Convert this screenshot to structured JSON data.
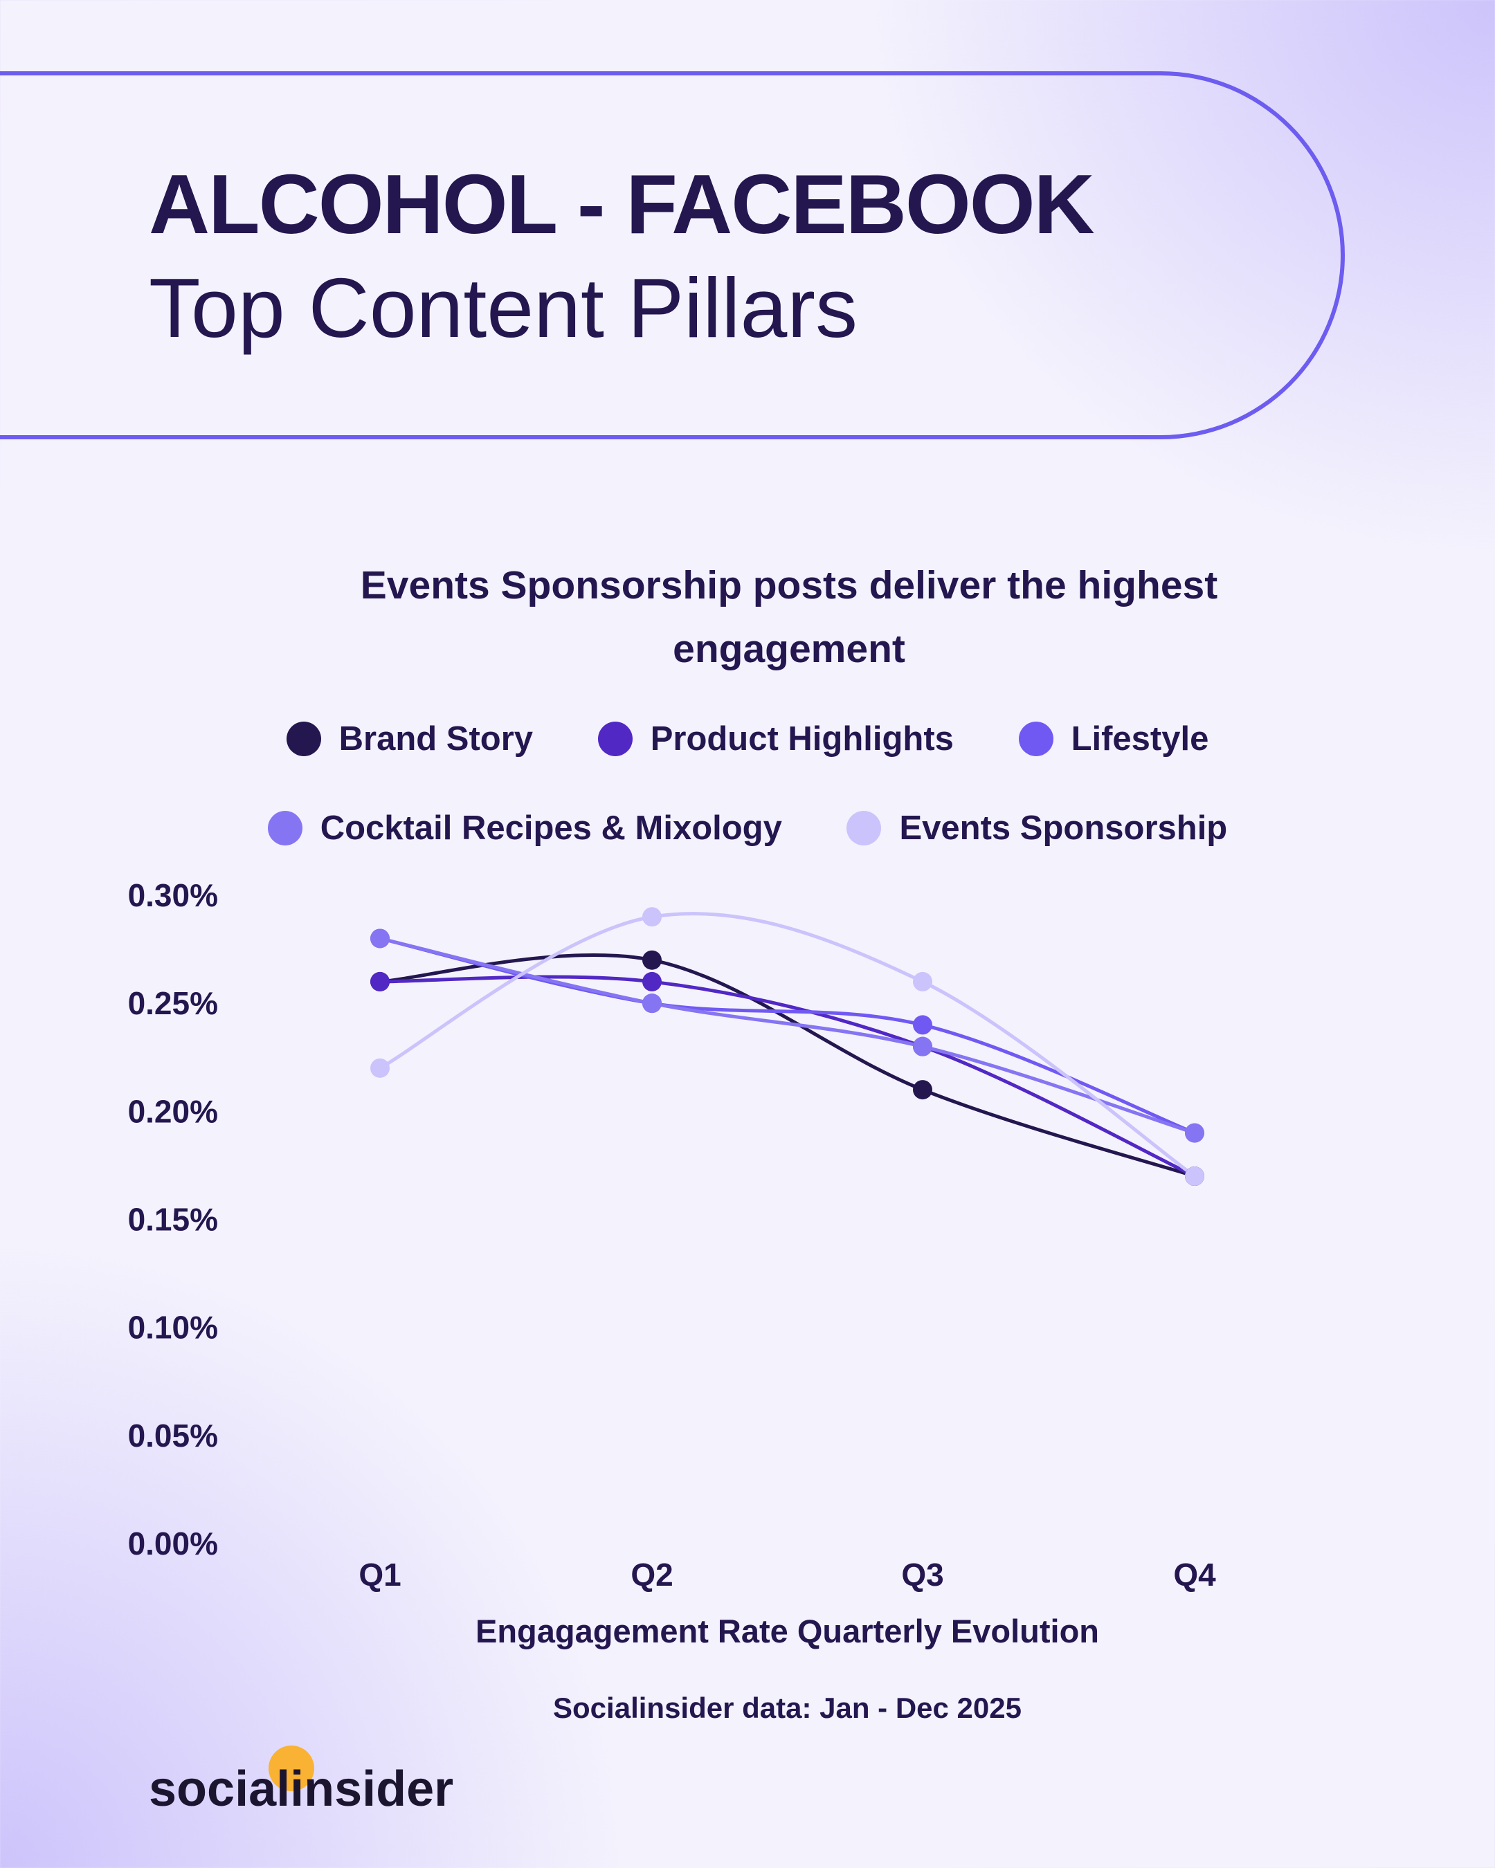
{
  "header": {
    "title": "ALCOHOL - FACEBOOK",
    "subtitle": "Top Content Pillars"
  },
  "chart_data": {
    "type": "line",
    "title": "Events Sponsorship posts deliver the highest engagement",
    "categories": [
      "Q1",
      "Q2",
      "Q3",
      "Q4"
    ],
    "xlabel": "Engagagement Rate Quarterly Evolution",
    "ylabel": "",
    "ylim": [
      0,
      0.3
    ],
    "yticks": [
      "0.00%",
      "0.05%",
      "0.10%",
      "0.15%",
      "0.20%",
      "0.25%",
      "0.30%"
    ],
    "ytick_values": [
      0,
      0.05,
      0.1,
      0.15,
      0.2,
      0.25,
      0.3
    ],
    "grid": false,
    "legend_position": "top",
    "series": [
      {
        "name": "Brand Story",
        "color": "#24174f",
        "values": [
          0.26,
          0.27,
          0.21,
          0.17
        ]
      },
      {
        "name": "Product Highlights",
        "color": "#5128c4",
        "values": [
          0.26,
          0.26,
          0.23,
          0.17
        ]
      },
      {
        "name": "Lifestyle",
        "color": "#7059f3",
        "values": [
          0.28,
          0.25,
          0.24,
          0.19
        ]
      },
      {
        "name": "Cocktail Recipes & Mixology",
        "color": "#8575f3",
        "values": [
          0.28,
          0.25,
          0.23,
          0.19
        ]
      },
      {
        "name": "Events Sponsorship",
        "color": "#cbc3fb",
        "values": [
          0.22,
          0.29,
          0.26,
          0.17
        ]
      }
    ]
  },
  "footer": {
    "source": "Socialinsider data: Jan - Dec 2025",
    "logo": "socialinsider"
  },
  "colors": {
    "accent": "#6c5cf0",
    "logo_dot": "#f9b233"
  }
}
